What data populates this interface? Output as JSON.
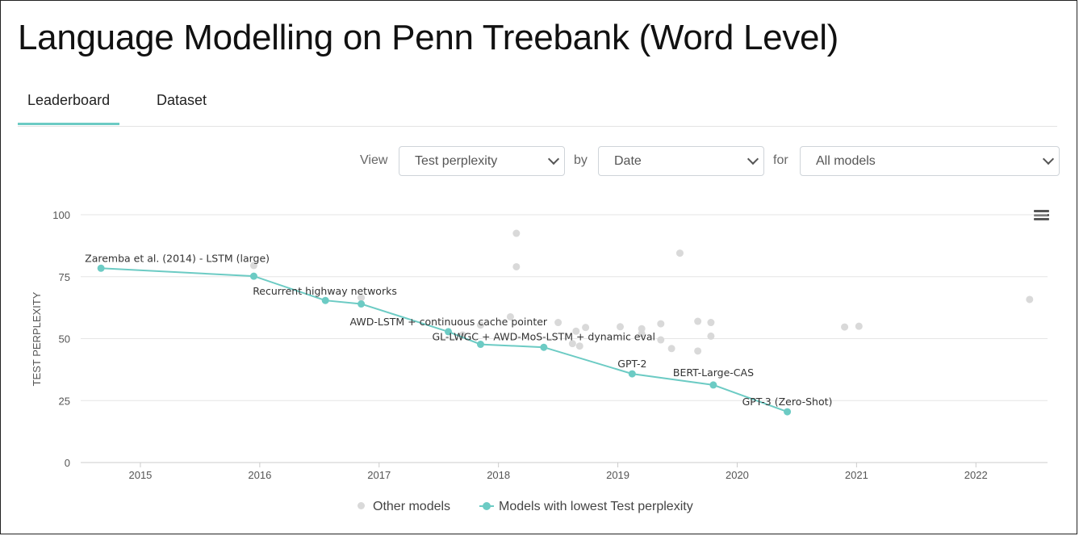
{
  "page": {
    "title": "Language Modelling on Penn Treebank (Word Level)"
  },
  "tabs": [
    {
      "label": "Leaderboard",
      "active": true
    },
    {
      "label": "Dataset",
      "active": false
    }
  ],
  "controls": {
    "view_label": "View",
    "view_value": "Test perplexity",
    "by_label": "by",
    "by_value": "Date",
    "for_label": "for",
    "for_value": "All models"
  },
  "colors": {
    "accent": "#6ccbc4",
    "other_points": "#d9d9d9",
    "grid": "#e6e6e6"
  },
  "legend": {
    "other": "Other models",
    "best": "Models with lowest Test perplexity"
  },
  "chart_data": {
    "type": "scatter",
    "ylabel": "TEST PERPLEXITY",
    "xlabel": "",
    "ylim": [
      0,
      100
    ],
    "yticks": [
      0,
      25,
      50,
      75,
      100
    ],
    "xlim": [
      2014.5,
      2022.6
    ],
    "xticks": [
      2015,
      2016,
      2017,
      2018,
      2019,
      2020,
      2021,
      2022
    ],
    "grid": "horizontal",
    "legend_position": "bottom",
    "series": [
      {
        "name": "Other models",
        "points": [
          [
            2018.15,
            92.5
          ],
          [
            2018.15,
            79.0
          ],
          [
            2019.52,
            84.5
          ],
          [
            2016.85,
            66.5
          ],
          [
            2015.95,
            79.5
          ],
          [
            2018.1,
            58.8
          ],
          [
            2018.5,
            56.5
          ],
          [
            2018.65,
            53.0
          ],
          [
            2018.62,
            48.0
          ],
          [
            2018.68,
            47.0
          ],
          [
            2018.73,
            54.5
          ],
          [
            2019.02,
            54.8
          ],
          [
            2019.2,
            54.0
          ],
          [
            2019.2,
            52.0
          ],
          [
            2019.36,
            56.0
          ],
          [
            2019.36,
            49.5
          ],
          [
            2019.45,
            46.0
          ],
          [
            2019.67,
            57.0
          ],
          [
            2019.67,
            45.0
          ],
          [
            2019.78,
            56.5
          ],
          [
            2019.78,
            51.0
          ],
          [
            2020.9,
            54.7
          ],
          [
            2021.02,
            55.0
          ],
          [
            2022.45,
            65.8
          ],
          [
            2017.7,
            51.5
          ],
          [
            2017.85,
            55.5
          ]
        ]
      },
      {
        "name": "Models with lowest Test perplexity",
        "points": [
          [
            2014.67,
            78.4
          ],
          [
            2015.95,
            75.2
          ],
          [
            2016.55,
            65.4
          ],
          [
            2016.85,
            64.0
          ],
          [
            2017.58,
            52.8
          ],
          [
            2017.85,
            47.7
          ],
          [
            2018.38,
            46.5
          ],
          [
            2019.12,
            35.8
          ],
          [
            2019.8,
            31.3
          ],
          [
            2020.42,
            20.5
          ]
        ],
        "labels": [
          {
            "text": "Zaremba et al. (2014) - LSTM (large)",
            "x": 2014.67,
            "y": 78.4
          },
          {
            "text": "Recurrent highway networks",
            "x": 2016.55,
            "y": 65.4
          },
          {
            "text": "AWD-LSTM + continuous cache pointer",
            "x": 2017.58,
            "y": 52.8
          },
          {
            "text": "GL-LWGC + AWD-MoS-LSTM + dynamic eval",
            "x": 2017.85,
            "y": 47.7
          },
          {
            "text": "GPT-2",
            "x": 2019.12,
            "y": 35.8
          },
          {
            "text": "BERT-Large-CAS",
            "x": 2019.8,
            "y": 31.3
          },
          {
            "text": "GPT-3 (Zero-Shot)",
            "x": 2020.42,
            "y": 20.5
          }
        ]
      }
    ]
  }
}
